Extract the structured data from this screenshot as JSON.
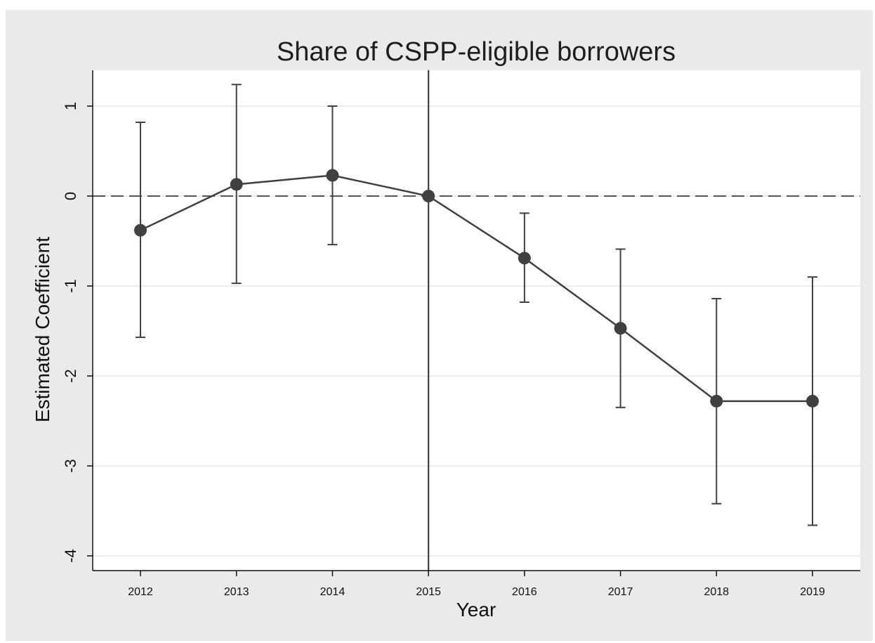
{
  "chart_data": {
    "type": "line",
    "title": "Share of CSPP-eligible borrowers",
    "xlabel": "Year",
    "ylabel": "Estimated Coefficient",
    "x": [
      2012,
      2013,
      2014,
      2015,
      2016,
      2017,
      2018,
      2019
    ],
    "x_tick_labels": [
      "2012",
      "2013",
      "2014",
      "2015",
      "2016",
      "2017",
      "2018",
      "2019"
    ],
    "y_ticks": [
      1,
      0,
      -1,
      -2,
      -3,
      -4
    ],
    "y_tick_labels": [
      "1",
      "0",
      "-1",
      "-2",
      "-3",
      "-4"
    ],
    "ylim": [
      -4.15,
      1.4
    ],
    "xlim": [
      2011.5,
      2019.5
    ],
    "series": [
      {
        "values": [
          -0.38,
          0.13,
          0.23,
          0.0,
          -0.69,
          -1.47,
          -2.28,
          -2.28
        ],
        "ci_low": [
          -1.57,
          -0.97,
          -0.54,
          -4.15,
          -1.18,
          -2.35,
          -3.42,
          -3.66
        ],
        "ci_high": [
          0.82,
          1.24,
          1.0,
          1.4,
          -0.19,
          -0.59,
          -1.14,
          -0.9
        ],
        "ci_capped": [
          true,
          true,
          true,
          false,
          true,
          true,
          true,
          true
        ]
      }
    ],
    "reference_lines": {
      "horizontal": 0,
      "vertical": 2015
    },
    "grid": true,
    "colors": {
      "series": "#404040",
      "grid": "#eaeaea",
      "background": "#eaeaea",
      "plot_area": "#ffffff"
    }
  }
}
